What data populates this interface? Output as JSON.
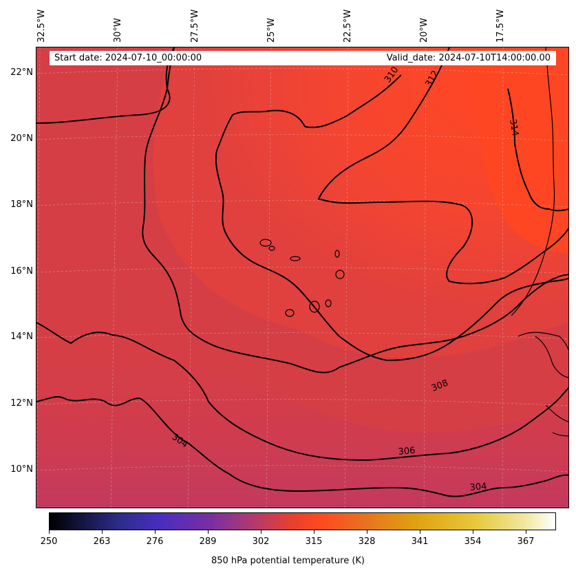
{
  "header": {
    "start_date": "Start date: 2024-07-10_00:00:00",
    "valid_date": "Valid_date: 2024-07-10T14:00:00.00"
  },
  "longitude_labels": [
    "32.5°W",
    "30°W",
    "27.5°W",
    "25°W",
    "22.5°W",
    "20°W",
    "17.5°W"
  ],
  "latitude_labels": [
    "22°N",
    "20°N",
    "18°N",
    "16°N",
    "14°N",
    "12°N",
    "10°N"
  ],
  "contour_labels": [
    "310",
    "312",
    "314",
    "308",
    "306",
    "304",
    "304"
  ],
  "colorbar": {
    "ticks": [
      "250",
      "263",
      "276",
      "289",
      "302",
      "315",
      "328",
      "341",
      "354",
      "367"
    ],
    "title": "850 hPa potential temperature (K)",
    "colormap": "CMRmap-like: black → purple → red-orange → yellow → white"
  },
  "colors": {
    "field_low": "#c13c5a",
    "field_mid": "#e0403e",
    "field_high": "#ff4722",
    "contour": "#000000",
    "grid": "#d9d9d9"
  }
}
